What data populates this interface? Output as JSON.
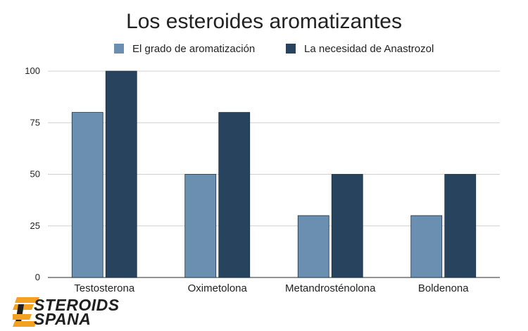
{
  "chart_data": {
    "type": "bar",
    "title": "Los esteroides aromatizantes",
    "categories": [
      "Testosterona",
      "Oximetolona",
      "Metandrosténolona",
      "Boldenona"
    ],
    "series": [
      {
        "name": "El grado de aromatización",
        "values": [
          80,
          50,
          30,
          30
        ],
        "color": "#6b8fb0"
      },
      {
        "name": "La necesidad de Anastrozol",
        "values": [
          100,
          80,
          50,
          50
        ],
        "color": "#27435e"
      }
    ],
    "xlabel": "",
    "ylabel": "",
    "ylim": [
      0,
      100
    ],
    "yticks": [
      0,
      25,
      50,
      75,
      100
    ],
    "grid": true,
    "legend_position": "top"
  },
  "logo": {
    "line1": "STEROIDS",
    "line2": "SPANA",
    "accent_color": "#f2a120"
  }
}
